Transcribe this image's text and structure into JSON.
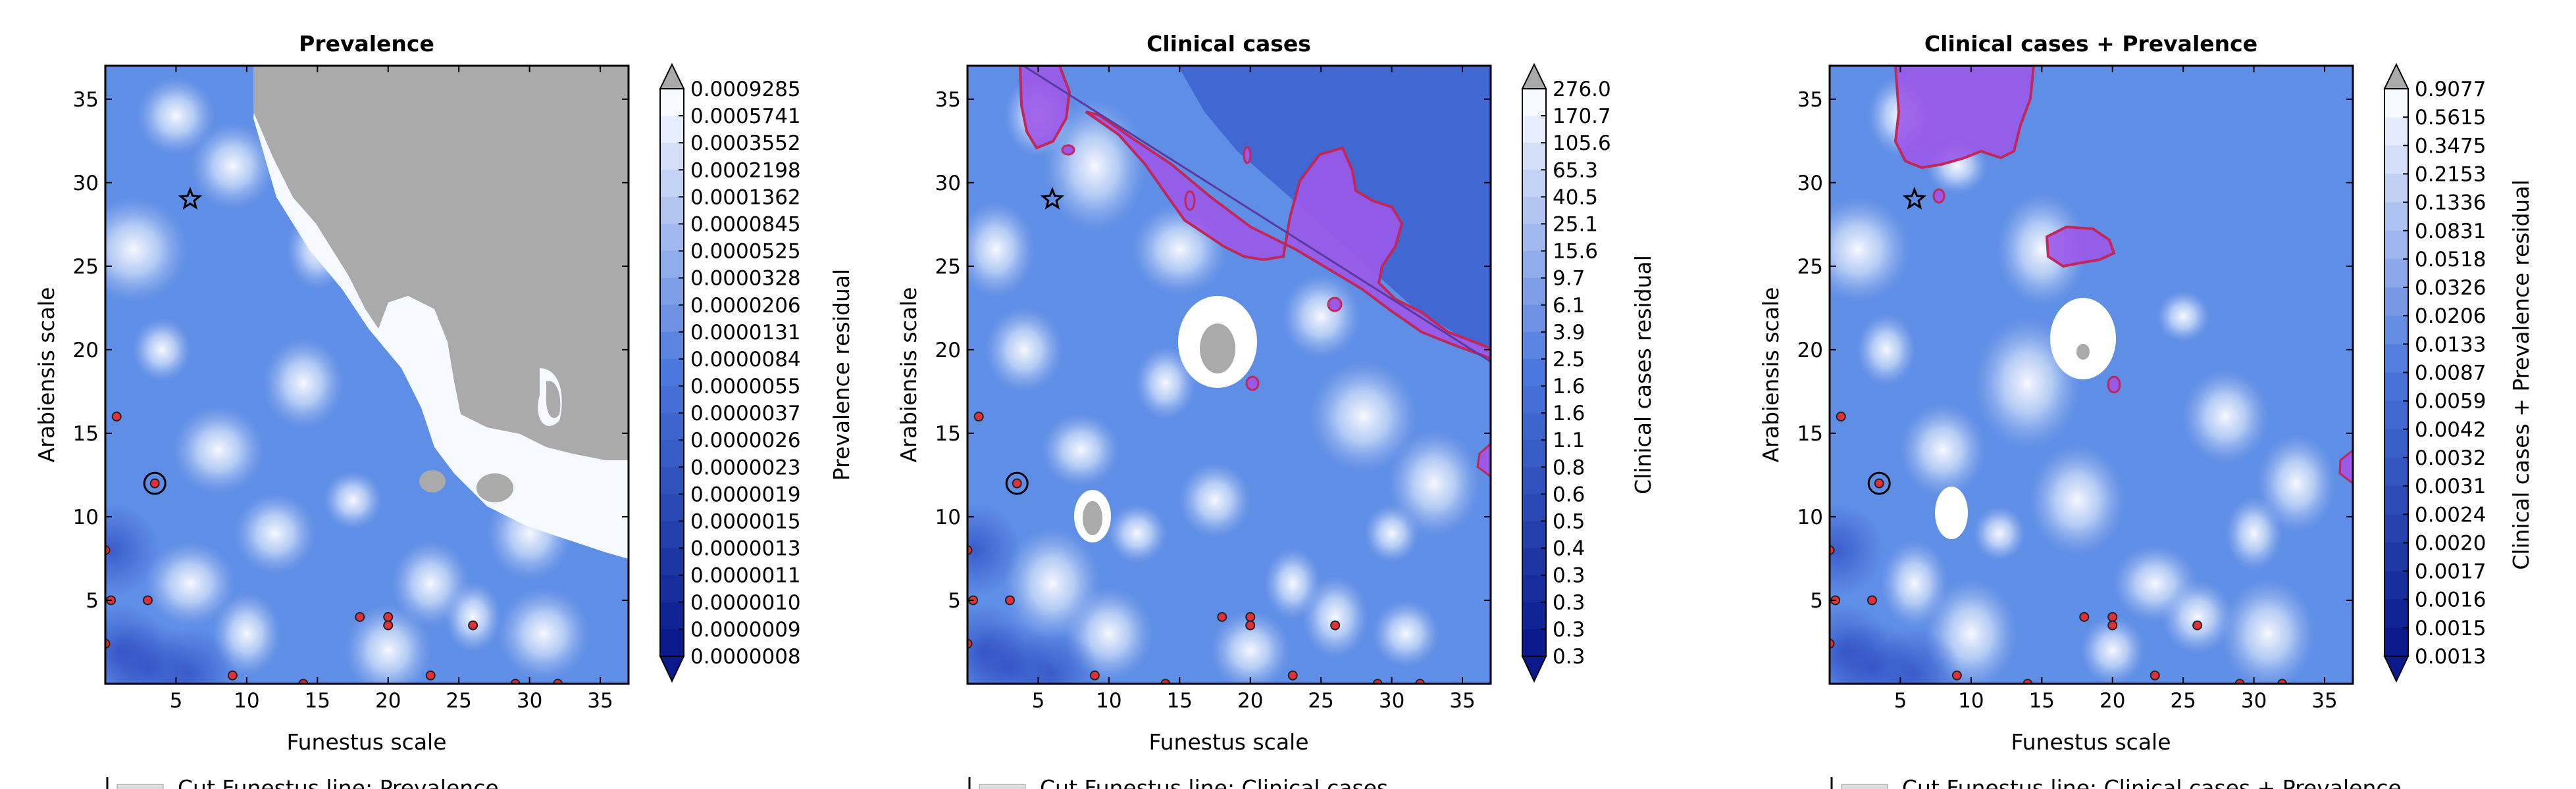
{
  "figure": {
    "colors": {
      "cmap_dark": "#0a1a8c",
      "cmap_mid": "#4a78dd",
      "cmap_light": "#d8e4f8",
      "over_color": "#aaaaaa",
      "region_fill": "#9b59e8",
      "region_edge": "#c0285a",
      "marker_fill": "#e0303a"
    }
  },
  "chart_data": [
    {
      "type": "heatmap",
      "title": "Prevalence",
      "xlabel": "Funestus scale",
      "ylabel": "Arabiensis scale",
      "xlim": [
        0,
        37
      ],
      "ylim": [
        0,
        37
      ],
      "xticks": [
        "5",
        "10",
        "15",
        "20",
        "25",
        "30",
        "35"
      ],
      "yticks": [
        "5",
        "10",
        "15",
        "20",
        "25",
        "30",
        "35"
      ],
      "colorbar_label": "Prevalence residual",
      "colorbar_ticks": [
        "0.0009285",
        "0.0005741",
        "0.0003552",
        "0.0002198",
        "0.0001362",
        "0.0000845",
        "0.0000525",
        "0.0000328",
        "0.0000206",
        "0.0000131",
        "0.0000084",
        "0.0000055",
        "0.0000037",
        "0.0000026",
        "0.0000023",
        "0.0000019",
        "0.0000015",
        "0.0000013",
        "0.0000011",
        "0.0000010",
        "0.0000009",
        "0.0000008"
      ],
      "star": [
        6,
        29
      ],
      "circle_marker": [
        3.5,
        12
      ],
      "points": [
        [
          0.8,
          16
        ],
        [
          3.5,
          12
        ],
        [
          0,
          8
        ],
        [
          0.4,
          5
        ],
        [
          0,
          2.4
        ],
        [
          3,
          5
        ],
        [
          9,
          0.5
        ],
        [
          14,
          0
        ],
        [
          18,
          4
        ],
        [
          20,
          4
        ],
        [
          20,
          3.5
        ],
        [
          23,
          0.5
        ],
        [
          26,
          3.5
        ],
        [
          29,
          0
        ],
        [
          32,
          0
        ]
      ],
      "legend_text": "Cut Funestus line: Prevalence"
    },
    {
      "type": "heatmap",
      "title": "Clinical cases",
      "xlabel": "Funestus scale",
      "ylabel": "Arabiensis scale",
      "xlim": [
        0,
        37
      ],
      "ylim": [
        0,
        37
      ],
      "xticks": [
        "5",
        "10",
        "15",
        "20",
        "25",
        "30",
        "35"
      ],
      "yticks": [
        "5",
        "10",
        "15",
        "20",
        "25",
        "30",
        "35"
      ],
      "colorbar_label": "Clinical cases residual",
      "colorbar_ticks": [
        "276.0",
        "170.7",
        "105.6",
        "65.3",
        "40.5",
        "25.1",
        "15.6",
        "9.7",
        "6.1",
        "3.9",
        "2.5",
        "1.6",
        "1.6",
        "1.1",
        "0.8",
        "0.6",
        "0.5",
        "0.4",
        "0.3",
        "0.3",
        "0.3",
        "0.3"
      ],
      "star": [
        6,
        29
      ],
      "circle_marker": [
        3.5,
        12
      ],
      "points": [
        [
          0.8,
          16
        ],
        [
          3.5,
          12
        ],
        [
          0,
          8
        ],
        [
          0.4,
          5
        ],
        [
          0,
          2.4
        ],
        [
          3,
          5
        ],
        [
          9,
          0.5
        ],
        [
          14,
          0
        ],
        [
          18,
          4
        ],
        [
          20,
          4
        ],
        [
          20,
          3.5
        ],
        [
          23,
          0.5
        ],
        [
          26,
          3.5
        ],
        [
          29,
          0
        ],
        [
          32,
          0
        ]
      ],
      "legend_text": "Cut Funestus line: Clinical cases"
    },
    {
      "type": "heatmap",
      "title": "Clinical cases + Prevalence",
      "xlabel": "Funestus scale",
      "ylabel": "Arabiensis scale",
      "xlim": [
        0,
        37
      ],
      "ylim": [
        0,
        37
      ],
      "xticks": [
        "5",
        "10",
        "15",
        "20",
        "25",
        "30",
        "35"
      ],
      "yticks": [
        "5",
        "10",
        "15",
        "20",
        "25",
        "30",
        "35"
      ],
      "colorbar_label": "Clinical cases + Prevalence residual",
      "colorbar_ticks": [
        "0.9077",
        "0.5615",
        "0.3475",
        "0.2153",
        "0.1336",
        "0.0831",
        "0.0518",
        "0.0326",
        "0.0206",
        "0.0133",
        "0.0087",
        "0.0059",
        "0.0042",
        "0.0032",
        "0.0031",
        "0.0024",
        "0.0020",
        "0.0017",
        "0.0016",
        "0.0015",
        "0.0013"
      ],
      "star": [
        6,
        29
      ],
      "circle_marker": [
        3.5,
        12
      ],
      "points": [
        [
          0.8,
          16
        ],
        [
          3.5,
          12
        ],
        [
          0,
          8
        ],
        [
          0.4,
          5
        ],
        [
          0,
          2.4
        ],
        [
          3,
          5
        ],
        [
          9,
          0.5
        ],
        [
          14,
          0
        ],
        [
          18,
          4
        ],
        [
          20,
          4
        ],
        [
          20,
          3.5
        ],
        [
          23,
          0.5
        ],
        [
          26,
          3.5
        ],
        [
          29,
          0
        ],
        [
          32,
          0
        ]
      ],
      "legend_text": "Cut Funestus line: Clinical cases + Prevalence"
    }
  ]
}
